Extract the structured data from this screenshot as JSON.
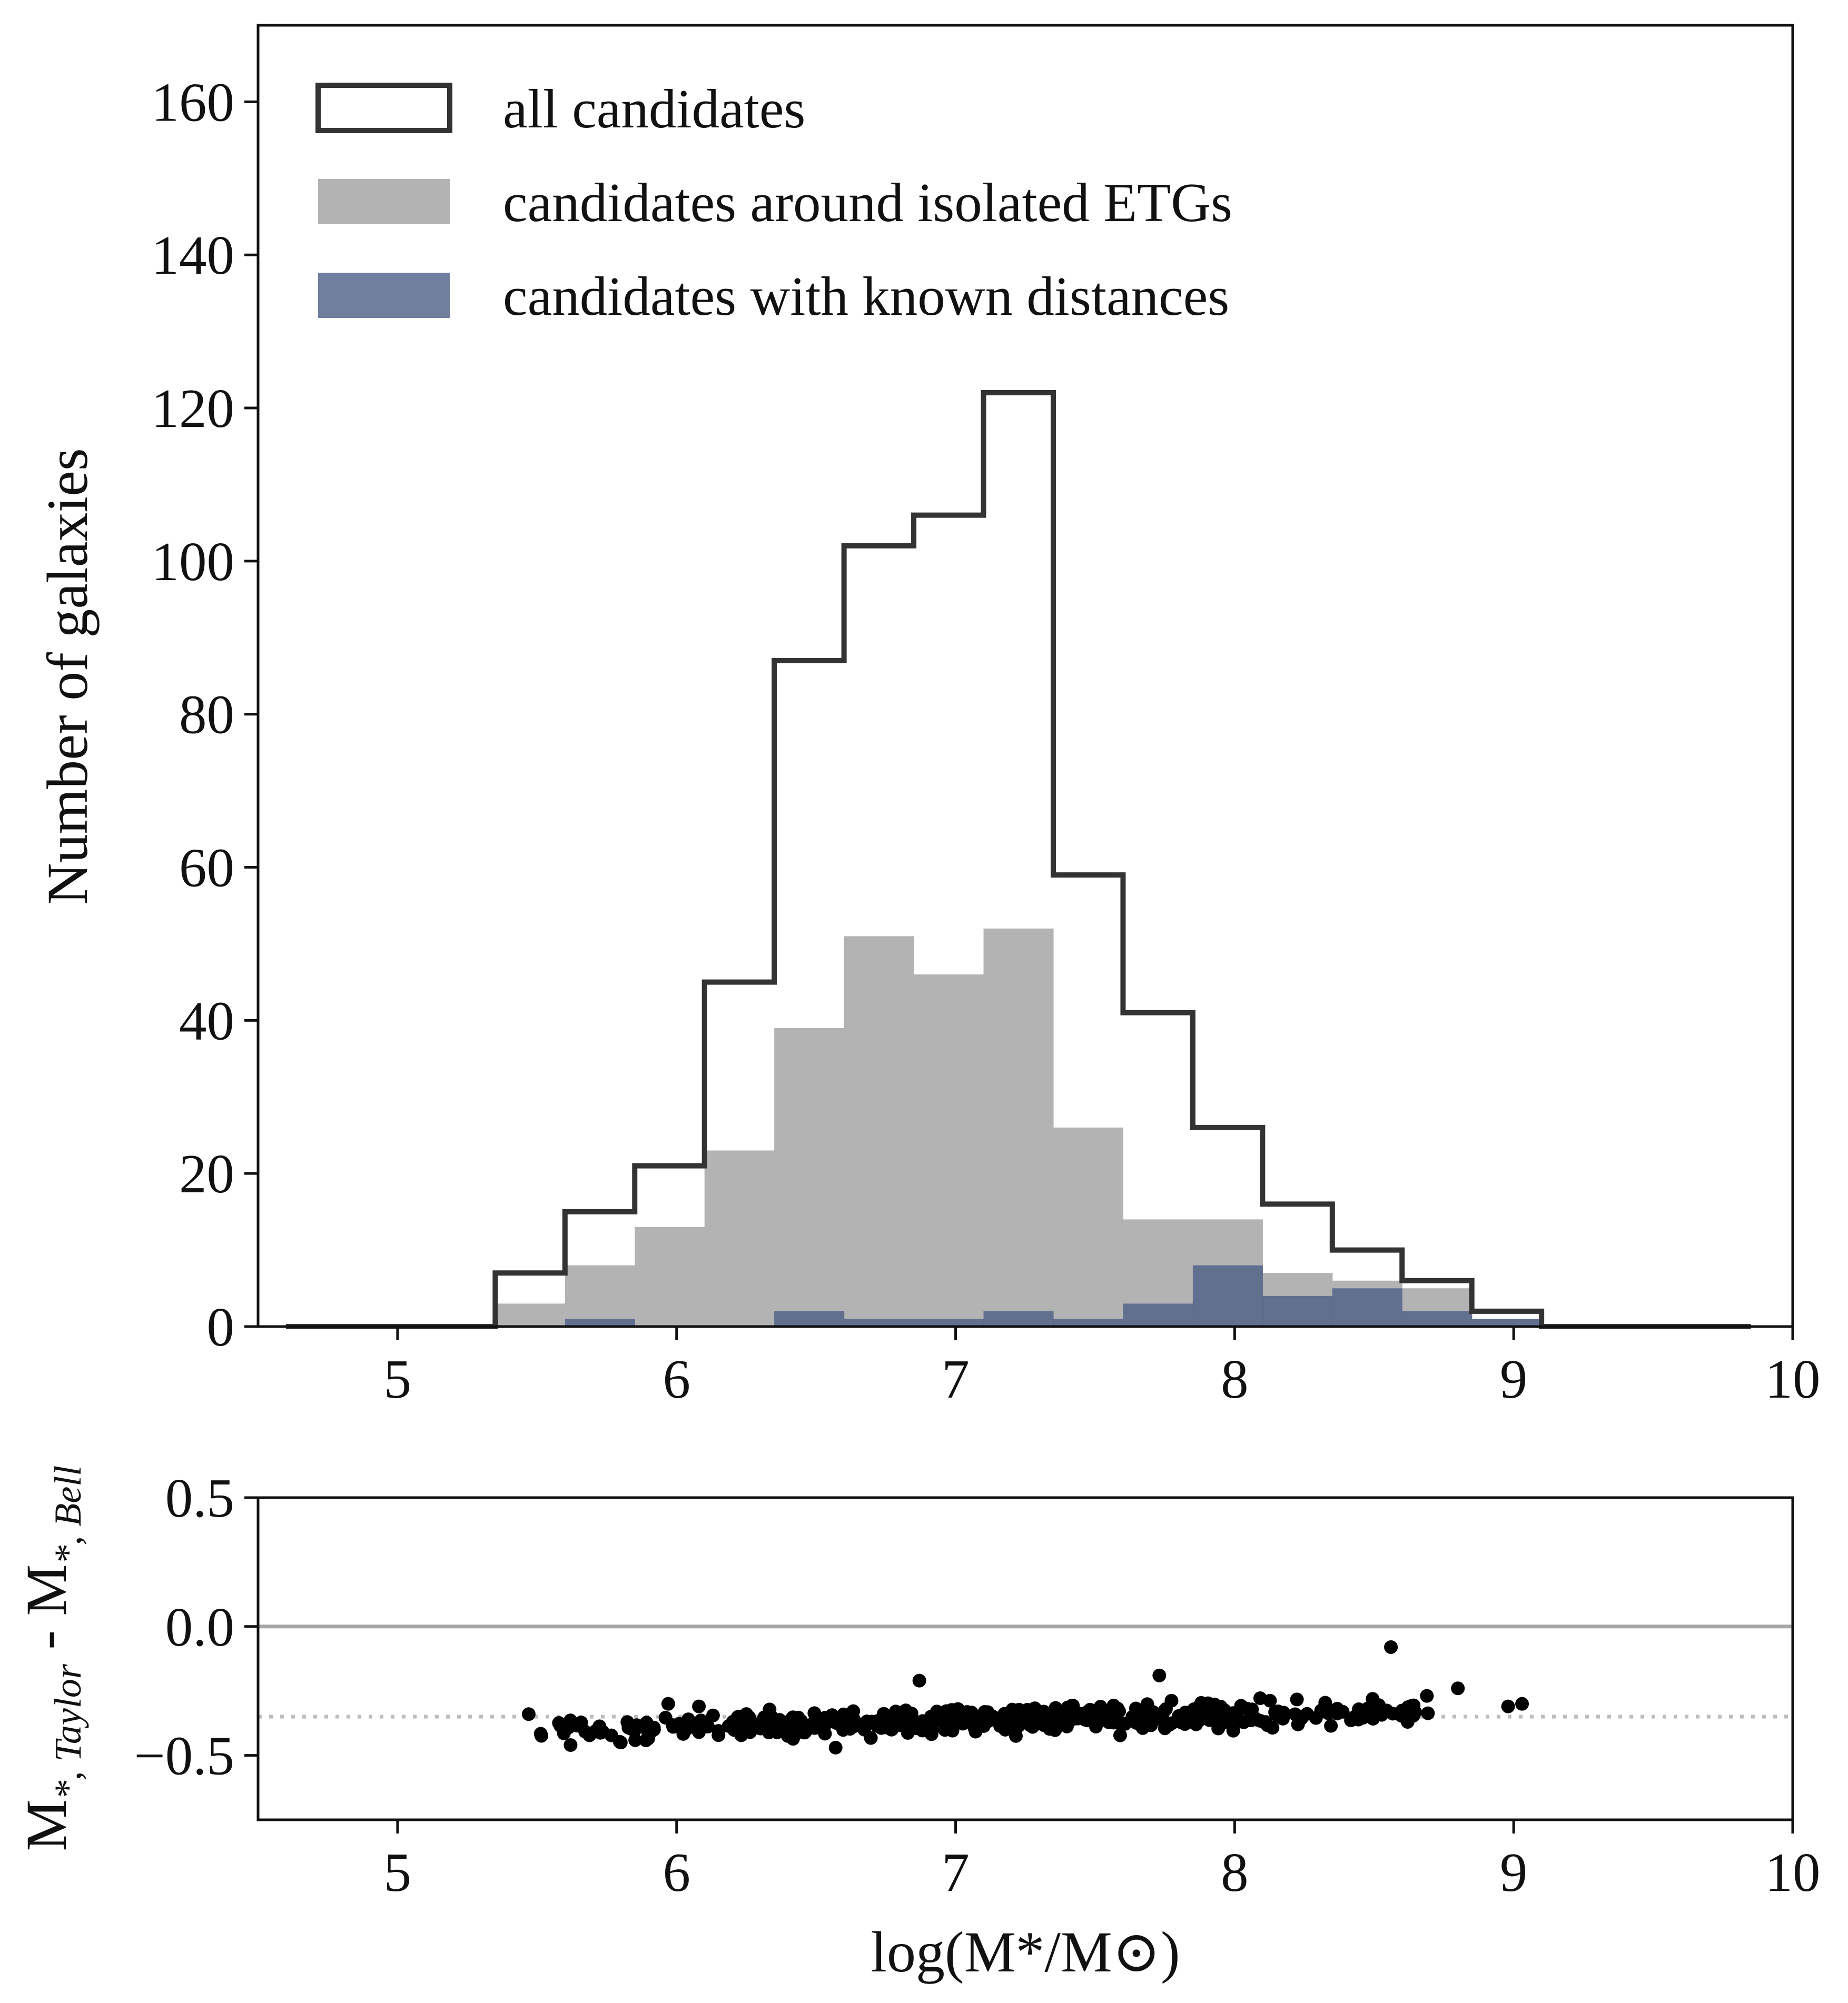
{
  "chart_data": [
    {
      "type": "histogram",
      "ylabel": "Number of galaxies",
      "xlim": [
        4.5,
        10
      ],
      "ylim": [
        0,
        170
      ],
      "x_ticks": [
        "5",
        "6",
        "7",
        "8",
        "9",
        "10"
      ],
      "y_ticks": [
        "0",
        "20",
        "40",
        "60",
        "80",
        "100",
        "120",
        "140",
        "160"
      ],
      "legend_position": "top-left",
      "bin_edges": [
        4.6,
        4.85,
        5.1,
        5.35,
        5.6,
        5.85,
        6.1,
        6.35,
        6.6,
        6.85,
        7.1,
        7.35,
        7.6,
        7.85,
        8.1,
        8.35,
        8.6,
        8.85,
        9.1,
        9.35,
        9.6,
        9.85
      ],
      "series": [
        {
          "name": "all candidates",
          "style": "step",
          "color": "#333333",
          "values": [
            0,
            0,
            0,
            7,
            15,
            21,
            45,
            87,
            102,
            106,
            122,
            59,
            41,
            26,
            16,
            10,
            6,
            2,
            0,
            0,
            0
          ]
        },
        {
          "name": "candidates around isolated ETGs",
          "style": "filled",
          "color": "#b3b3b3",
          "values": [
            0,
            0,
            0,
            3,
            8,
            13,
            23,
            39,
            51,
            46,
            52,
            26,
            14,
            14,
            7,
            6,
            5,
            1,
            0,
            0,
            0
          ]
        },
        {
          "name": "candidates with known distances",
          "style": "filled",
          "color": "#4c5f86",
          "values": [
            0,
            0,
            0,
            0,
            1,
            0,
            0,
            2,
            1,
            1,
            2,
            1,
            3,
            8,
            4,
            5,
            2,
            1,
            0,
            0,
            0
          ]
        }
      ]
    },
    {
      "type": "scatter",
      "xlabel": "log(M*/M⊙)",
      "ylabel": "M*, Taylor - M*, Bell",
      "ylabel_parts": {
        "m1": "M",
        "s1": "*, Taylor",
        "minus": " - ",
        "m2": "M",
        "s2": "*, Bell"
      },
      "xlim": [
        4.5,
        10
      ],
      "ylim": [
        -0.75,
        0.5
      ],
      "x_ticks": [
        "5",
        "6",
        "7",
        "8",
        "9",
        "10"
      ],
      "y_ticks": [
        "0.5",
        "0.0",
        "−0.5"
      ],
      "reference_lines": [
        {
          "y": 0.0,
          "style": "solid",
          "color": "#a6a6a6"
        },
        {
          "y": -0.35,
          "style": "dotted",
          "color": "#bdbdbd"
        }
      ],
      "marker_color": "#000000",
      "outliers": [
        [
          8.56,
          -0.08
        ],
        [
          8.8,
          -0.24
        ],
        [
          7.73,
          -0.19
        ],
        [
          6.87,
          -0.21
        ],
        [
          9.03,
          -0.3
        ],
        [
          8.98,
          -0.31
        ],
        [
          5.47,
          -0.34
        ],
        [
          5.62,
          -0.46
        ],
        [
          5.8,
          -0.45
        ],
        [
          6.57,
          -0.47
        ],
        [
          8.62,
          -0.37
        ],
        [
          5.97,
          -0.3
        ],
        [
          6.08,
          -0.31
        ]
      ],
      "bulk_trend": {
        "x_range": [
          5.5,
          8.7
        ],
        "y_start": -0.41,
        "y_end": -0.32,
        "spread": 0.05,
        "n_points": 420
      }
    }
  ]
}
